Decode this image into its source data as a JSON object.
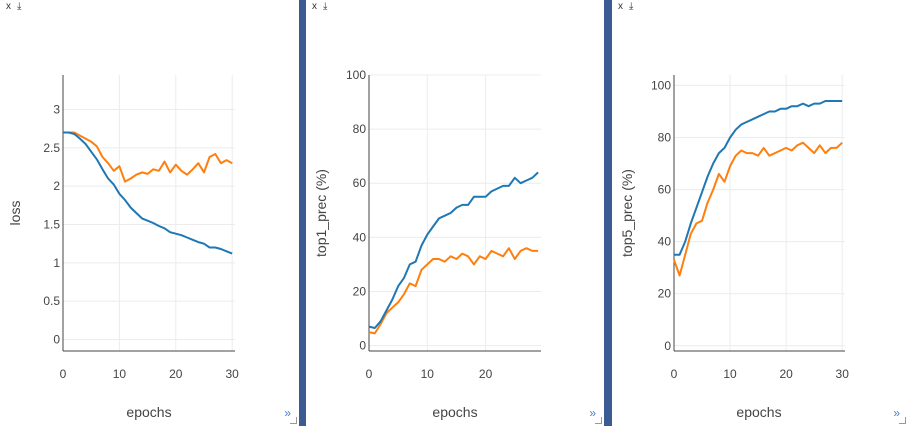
{
  "panes": [
    {
      "close_label": "x",
      "download_label": "⤓",
      "expand_label": "»"
    },
    {
      "close_label": "x",
      "download_label": "⤓",
      "expand_label": "»"
    },
    {
      "close_label": "x",
      "download_label": "⤓",
      "expand_label": "»"
    }
  ],
  "chart_data": [
    {
      "type": "line",
      "xlabel": "epochs",
      "ylabel": "loss",
      "xlim": [
        0,
        30.5
      ],
      "ylim": [
        -0.15,
        3.45
      ],
      "xticks": [
        0,
        10,
        20,
        30
      ],
      "yticks": [
        0,
        0.5,
        1,
        1.5,
        2,
        2.5,
        3
      ],
      "grid": true,
      "colors": [
        "#1f77b4",
        "#ff7f0e"
      ],
      "series": [
        {
          "x": [
            0,
            1,
            2,
            3,
            4,
            5,
            6,
            7,
            8,
            9,
            10,
            11,
            12,
            13,
            14,
            15,
            16,
            17,
            18,
            19,
            20,
            21,
            22,
            23,
            24,
            25,
            26,
            27,
            28,
            29,
            30
          ],
          "values": [
            2.7,
            2.7,
            2.68,
            2.62,
            2.55,
            2.45,
            2.35,
            2.22,
            2.1,
            2.02,
            1.9,
            1.82,
            1.72,
            1.65,
            1.58,
            1.55,
            1.52,
            1.48,
            1.45,
            1.4,
            1.38,
            1.36,
            1.33,
            1.3,
            1.27,
            1.25,
            1.2,
            1.2,
            1.18,
            1.15,
            1.12
          ]
        },
        {
          "x": [
            0,
            1,
            2,
            3,
            4,
            5,
            6,
            7,
            8,
            9,
            10,
            11,
            12,
            13,
            14,
            15,
            16,
            17,
            18,
            19,
            20,
            21,
            22,
            23,
            24,
            25,
            26,
            27,
            28,
            29,
            30
          ],
          "values": [
            2.7,
            2.7,
            2.7,
            2.66,
            2.62,
            2.58,
            2.52,
            2.38,
            2.3,
            2.2,
            2.26,
            2.06,
            2.1,
            2.15,
            2.18,
            2.16,
            2.22,
            2.2,
            2.32,
            2.18,
            2.28,
            2.2,
            2.15,
            2.22,
            2.3,
            2.18,
            2.38,
            2.42,
            2.3,
            2.34,
            2.3
          ]
        }
      ]
    },
    {
      "type": "line",
      "xlabel": "epochs",
      "ylabel": "top1_prec (%)",
      "xlim": [
        0,
        29.5
      ],
      "ylim": [
        -2,
        100
      ],
      "xticks": [
        0,
        10,
        20
      ],
      "yticks": [
        0,
        20,
        40,
        60,
        80,
        100
      ],
      "grid": true,
      "colors": [
        "#1f77b4",
        "#ff7f0e"
      ],
      "series": [
        {
          "x": [
            0,
            1,
            2,
            3,
            4,
            5,
            6,
            7,
            8,
            9,
            10,
            11,
            12,
            13,
            14,
            15,
            16,
            17,
            18,
            19,
            20,
            21,
            22,
            23,
            24,
            25,
            26,
            27,
            28,
            29
          ],
          "values": [
            7,
            6.5,
            9,
            13,
            17,
            22,
            25,
            30,
            31,
            37,
            41,
            44,
            47,
            48,
            49,
            51,
            52,
            52,
            55,
            55,
            55,
            57,
            58,
            59,
            59,
            62,
            60,
            61,
            62,
            64
          ]
        },
        {
          "x": [
            0,
            1,
            2,
            3,
            4,
            5,
            6,
            7,
            8,
            9,
            10,
            11,
            12,
            13,
            14,
            15,
            16,
            17,
            18,
            19,
            20,
            21,
            22,
            23,
            24,
            25,
            26,
            27,
            28,
            29
          ],
          "values": [
            5,
            4.5,
            8,
            12,
            14,
            16,
            19,
            23,
            22,
            28,
            30,
            32,
            32,
            31,
            33,
            32,
            34,
            33,
            30,
            33,
            32,
            35,
            34,
            33,
            36,
            32,
            35,
            36,
            35,
            35
          ]
        }
      ]
    },
    {
      "type": "line",
      "xlabel": "epochs",
      "ylabel": "top5_prec (%)",
      "xlim": [
        0,
        30.5
      ],
      "ylim": [
        -2,
        104
      ],
      "xticks": [
        0,
        10,
        20,
        30
      ],
      "yticks": [
        0,
        20,
        40,
        60,
        80,
        100
      ],
      "grid": true,
      "colors": [
        "#1f77b4",
        "#ff7f0e"
      ],
      "series": [
        {
          "x": [
            0,
            1,
            2,
            3,
            4,
            5,
            6,
            7,
            8,
            9,
            10,
            11,
            12,
            13,
            14,
            15,
            16,
            17,
            18,
            19,
            20,
            21,
            22,
            23,
            24,
            25,
            26,
            27,
            28,
            29,
            30
          ],
          "values": [
            35,
            35,
            40,
            47,
            53,
            59,
            65,
            70,
            74,
            76,
            80,
            83,
            85,
            86,
            87,
            88,
            89,
            90,
            90,
            91,
            91,
            92,
            92,
            93,
            92,
            93,
            93,
            94,
            94,
            94,
            94
          ]
        },
        {
          "x": [
            0,
            1,
            2,
            3,
            4,
            5,
            6,
            7,
            8,
            9,
            10,
            11,
            12,
            13,
            14,
            15,
            16,
            17,
            18,
            19,
            20,
            21,
            22,
            23,
            24,
            25,
            26,
            27,
            28,
            29,
            30
          ],
          "values": [
            33,
            27,
            35,
            43,
            47,
            48,
            55,
            60,
            66,
            63,
            69,
            73,
            75,
            74,
            74,
            73,
            76,
            73,
            74,
            75,
            76,
            75,
            77,
            78,
            76,
            74,
            77,
            74,
            76,
            76,
            78
          ]
        }
      ]
    }
  ]
}
